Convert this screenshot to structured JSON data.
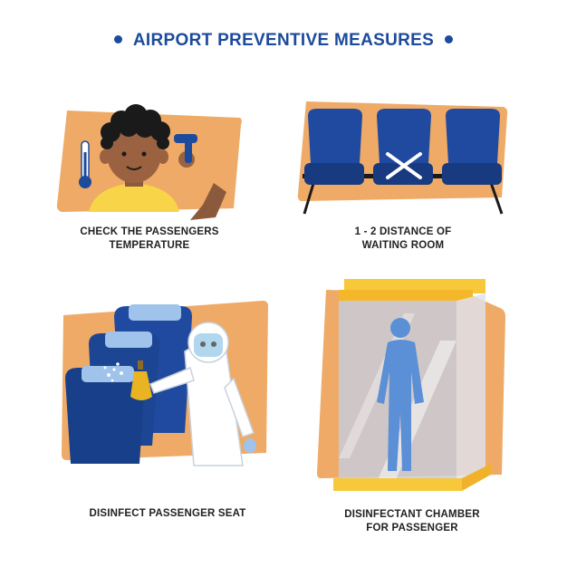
{
  "title": "AIRPORT PREVENTIVE MEASURES",
  "colors": {
    "brand": "#1c4a9c",
    "orange": "#eeaa66",
    "seat": "#1f4aa0",
    "seat_dark": "#173a80",
    "chamber": "#f7c83a"
  },
  "panels": [
    {
      "caption_lines": [
        "CHECK THE PASSENGERS",
        "TEMPERATURE"
      ],
      "icons": [
        "thermometer-icon",
        "passenger-figure",
        "thermometer-gun-icon"
      ]
    },
    {
      "caption_lines": [
        "1 - 2 DISTANCE OF",
        "WAITING ROOM"
      ],
      "icons": [
        "seat-icon",
        "blocked-seat-cross-icon"
      ]
    },
    {
      "caption_lines": [
        "DISINFECT PASSENGER SEAT"
      ],
      "icons": [
        "hazmat-worker-figure",
        "spray-bottle-icon",
        "seat-icon"
      ]
    },
    {
      "caption_lines": [
        "DISINFECTANT CHAMBER",
        "FOR PASSENGER"
      ],
      "icons": [
        "disinfectant-chamber-icon",
        "person-silhouette-icon"
      ]
    }
  ]
}
